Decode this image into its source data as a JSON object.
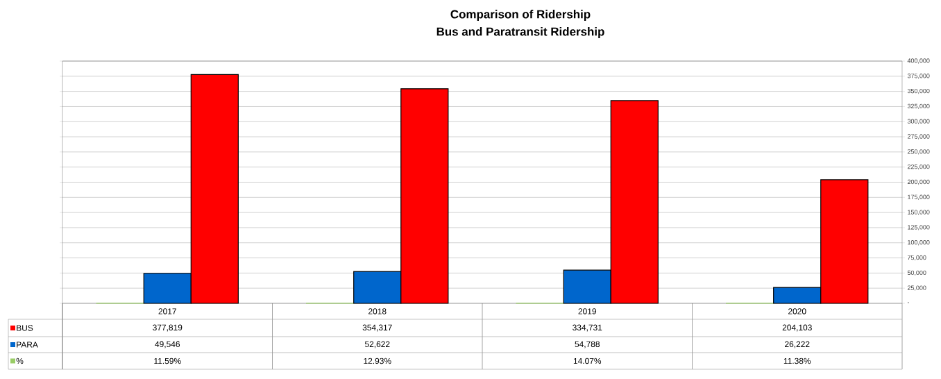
{
  "chart_data": {
    "type": "bar",
    "title": "Comparison of Ridership",
    "subtitle": "Bus and Paratransit Ridership",
    "categories": [
      "2017",
      "2018",
      "2019",
      "2020"
    ],
    "series": [
      {
        "name": "%",
        "color": "#99cc66",
        "values": [
          11.59,
          12.93,
          14.07,
          11.38
        ],
        "value_labels": [
          "11.59%",
          "12.93%",
          "14.07%",
          "11.38%"
        ]
      },
      {
        "name": "PARA",
        "color": "#0066cc",
        "values": [
          49546,
          52622,
          54788,
          26222
        ],
        "value_labels": [
          "49,546",
          "52,622",
          "54,788",
          "26,222"
        ]
      },
      {
        "name": "BUS",
        "color": "#ff0000",
        "values": [
          377819,
          354317,
          334731,
          204103
        ],
        "value_labels": [
          "377,819",
          "354,317",
          "334,731",
          "204,103"
        ]
      }
    ],
    "ylim": [
      0,
      400000
    ],
    "yticks": [
      {
        "value": 0,
        "label": "-"
      },
      {
        "value": 25000,
        "label": "25,000"
      },
      {
        "value": 50000,
        "label": "50,000"
      },
      {
        "value": 75000,
        "label": "75,000"
      },
      {
        "value": 100000,
        "label": "100,000"
      },
      {
        "value": 125000,
        "label": "125,000"
      },
      {
        "value": 150000,
        "label": "150,000"
      },
      {
        "value": 175000,
        "label": "175,000"
      },
      {
        "value": 200000,
        "label": "200,000"
      },
      {
        "value": 225000,
        "label": "225,000"
      },
      {
        "value": 250000,
        "label": "250,000"
      },
      {
        "value": 275000,
        "label": "275,000"
      },
      {
        "value": 300000,
        "label": "300,000"
      },
      {
        "value": 325000,
        "label": "325,000"
      },
      {
        "value": 350000,
        "label": "350,000"
      },
      {
        "value": 375000,
        "label": "375,000"
      },
      {
        "value": 400000,
        "label": "400,000"
      }
    ],
    "grid": "y",
    "legend": "bottom"
  }
}
